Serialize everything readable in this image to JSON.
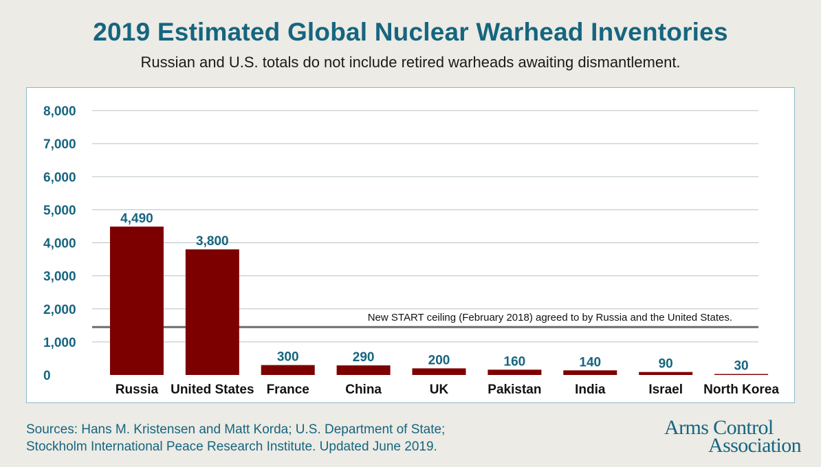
{
  "header": {
    "title": "2019 Estimated Global Nuclear Warhead Inventories",
    "subtitle": "Russian and U.S. totals do not include retired warheads awaiting dismantlement."
  },
  "chart_data": {
    "type": "bar",
    "categories": [
      "Russia",
      "United States",
      "France",
      "China",
      "UK",
      "Pakistan",
      "India",
      "Israel",
      "North Korea"
    ],
    "values": [
      4490,
      3800,
      300,
      290,
      200,
      160,
      140,
      90,
      30
    ],
    "value_labels": [
      "4,490",
      "3,800",
      "300",
      "290",
      "200",
      "160",
      "140",
      "90",
      "30"
    ],
    "yticks": [
      0,
      1000,
      2000,
      3000,
      4000,
      5000,
      6000,
      7000,
      8000
    ],
    "ytick_labels": [
      "0",
      "1,000",
      "2,000",
      "3,000",
      "4,000",
      "5,000",
      "6,000",
      "7,000",
      "8,000"
    ],
    "ylim": [
      0,
      8000
    ],
    "grid": true,
    "bar_color": "#7d0000",
    "reference_line": {
      "value": 1450,
      "label": "New START ceiling (February 2018) agreed to by Russia and the United States."
    }
  },
  "footer": {
    "sources_line1": "Sources: Hans M. Kristensen and Matt Korda; U.S. Department of State;",
    "sources_line2": "Stockholm International Peace Research Institute. Updated June 2019.",
    "logo_line1": "Arms Control",
    "logo_line2": "Association"
  },
  "colors": {
    "accent": "#16657f",
    "bar": "#7d0000",
    "reference_line": "#6d6d6d",
    "grid": "#b8c0c4"
  }
}
